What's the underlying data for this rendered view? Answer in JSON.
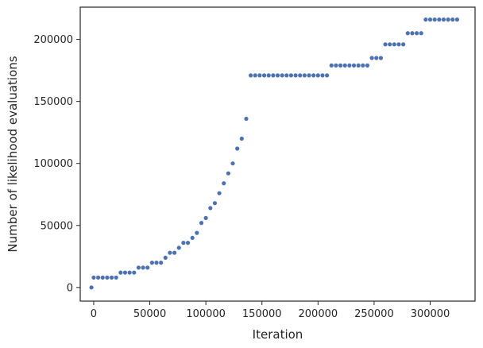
{
  "chart_data": {
    "type": "scatter",
    "title": "",
    "xlabel": "Iteration",
    "ylabel": "Number of likelihood evaluations",
    "xlim": [
      -12000,
      340000
    ],
    "ylim": [
      -11000,
      226000
    ],
    "xticks": [
      0,
      50000,
      100000,
      150000,
      200000,
      250000,
      300000
    ],
    "yticks": [
      0,
      50000,
      100000,
      150000,
      200000
    ],
    "xtick_labels": [
      "0",
      "50000",
      "100000",
      "150000",
      "200000",
      "250000",
      "300000"
    ],
    "ytick_labels": [
      "0",
      "50000",
      "100000",
      "150000",
      "200000"
    ],
    "grid": false,
    "marker_color": "#4c72b0",
    "series": [
      {
        "name": "",
        "x": [
          -2000,
          0,
          4000,
          8000,
          12000,
          16000,
          20000,
          24000,
          28000,
          32000,
          36000,
          40000,
          44000,
          48000,
          52000,
          56000,
          60000,
          64000,
          68000,
          72000,
          76000,
          80000,
          84000,
          88000,
          92000,
          96000,
          100000,
          104000,
          108000,
          112000,
          116000,
          120000,
          124000,
          128000,
          132000,
          136000,
          140000,
          144000,
          148000,
          152000,
          156000,
          160000,
          164000,
          168000,
          172000,
          176000,
          180000,
          184000,
          188000,
          192000,
          196000,
          200000,
          204000,
          208000,
          212000,
          216000,
          220000,
          224000,
          228000,
          232000,
          236000,
          240000,
          244000,
          248000,
          252000,
          256000,
          260000,
          264000,
          268000,
          272000,
          276000,
          280000,
          284000,
          288000,
          292000,
          296000,
          300000,
          304000,
          308000,
          312000,
          316000,
          320000,
          324000
        ],
        "y": [
          0,
          8000,
          8000,
          8000,
          8000,
          8000,
          8000,
          12000,
          12000,
          12000,
          12000,
          16000,
          16000,
          16000,
          20000,
          20000,
          20000,
          24000,
          28000,
          28000,
          32000,
          36000,
          36000,
          40000,
          44000,
          52000,
          56000,
          64000,
          68000,
          76000,
          84000,
          92000,
          100000,
          112000,
          120000,
          136000,
          171000,
          171000,
          171000,
          171000,
          171000,
          171000,
          171000,
          171000,
          171000,
          171000,
          171000,
          171000,
          171000,
          171000,
          171000,
          171000,
          171000,
          171000,
          179000,
          179000,
          179000,
          179000,
          179000,
          179000,
          179000,
          179000,
          179000,
          185000,
          185000,
          185000,
          196000,
          196000,
          196000,
          196000,
          196000,
          205000,
          205000,
          205000,
          205000,
          216000,
          216000,
          216000,
          216000,
          216000,
          216000,
          216000,
          216000
        ]
      }
    ]
  }
}
